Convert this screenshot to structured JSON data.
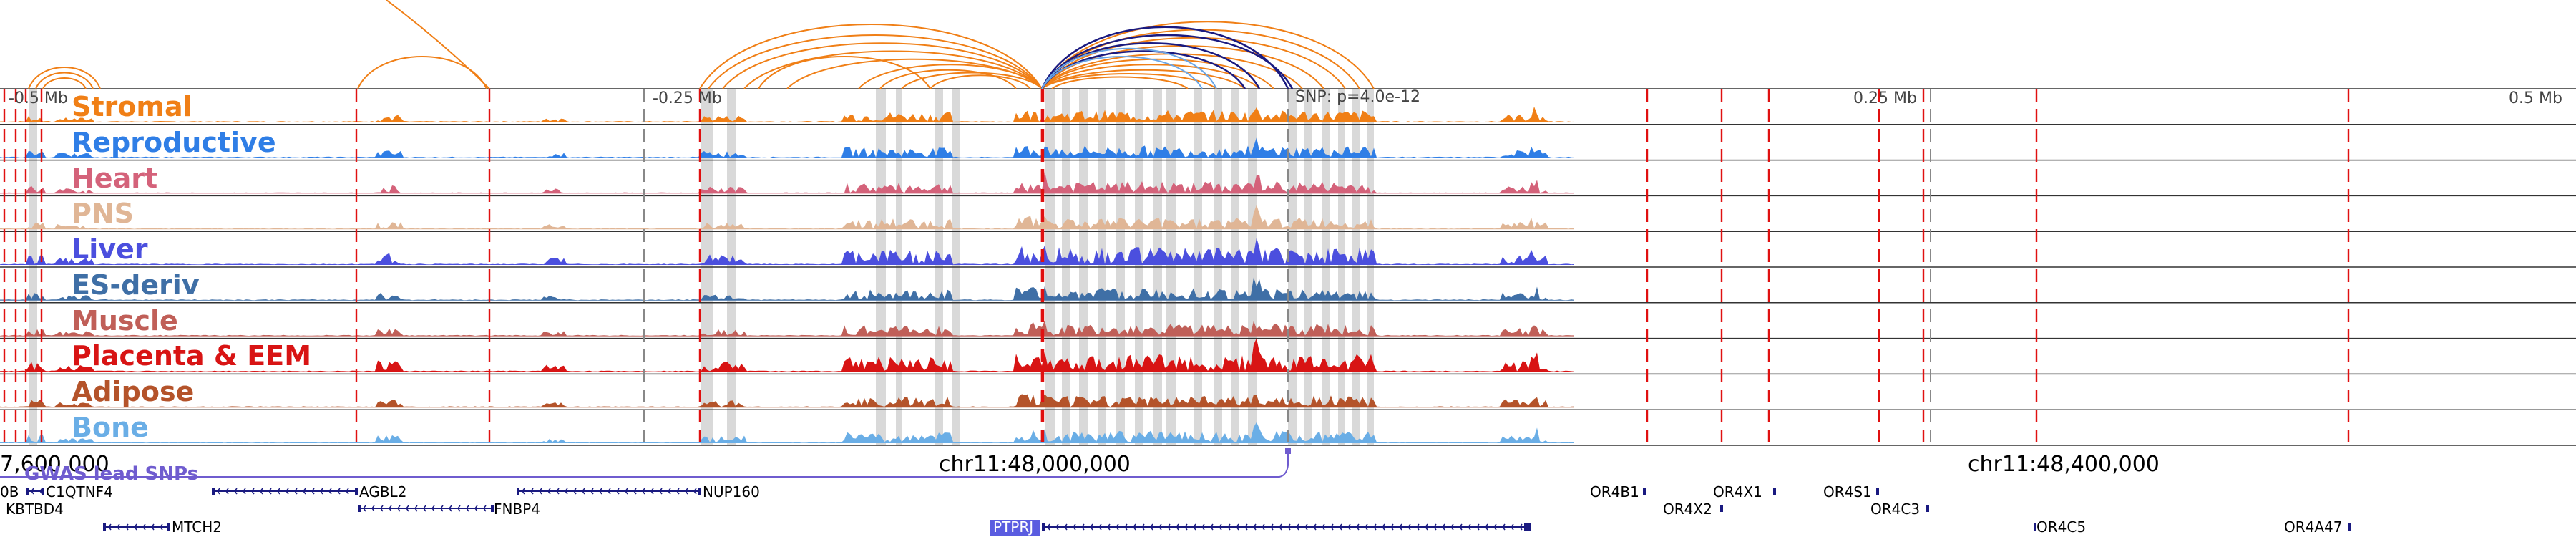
{
  "scale_labels": [
    "-0.5 Mb",
    "-0.25 Mb",
    "0.25 Mb",
    "0.5 Mb"
  ],
  "snp_label": "SNP: p=4.0e-12",
  "tracks": [
    {
      "label": "Stromal",
      "color": "#f07f16"
    },
    {
      "label": "Reproductive",
      "color": "#2f7ee6"
    },
    {
      "label": "Heart",
      "color": "#d4627a"
    },
    {
      "label": "PNS",
      "color": "#e0b696"
    },
    {
      "label": "Liver",
      "color": "#4b4fde"
    },
    {
      "label": "ES-deriv",
      "color": "#3f6fa6"
    },
    {
      "label": "Muscle",
      "color": "#c05f58"
    },
    {
      "label": "Placenta & EEM",
      "color": "#d81414"
    },
    {
      "label": "Adipose",
      "color": "#b4532a"
    },
    {
      "label": "Bone",
      "color": "#6aaee6"
    }
  ],
  "coordinates": [
    "7,600,000",
    "chr11:48,000,000",
    "chr11:48,400,000"
  ],
  "gwas_label": "GWAS lead SNPs",
  "genes": [
    "0B",
    "C1QTNF4",
    "KBTBD4",
    "AGBL2",
    "FNBP4",
    "NUP160",
    "MTCH2",
    "PTPRJ",
    "OR4B1",
    "OR4X1",
    "OR4S1",
    "OR4X2",
    "OR4C3",
    "OR4C5",
    "OR4A47"
  ],
  "colors": {
    "arc": "#f07f16",
    "arc_dark": "#1a1a80",
    "arc_blue": "#6aa6e6",
    "red_line": "#e01010",
    "gwas": "#6f5ccf",
    "gene": "#1a1a80",
    "highlight": "#d9d9d9"
  }
}
